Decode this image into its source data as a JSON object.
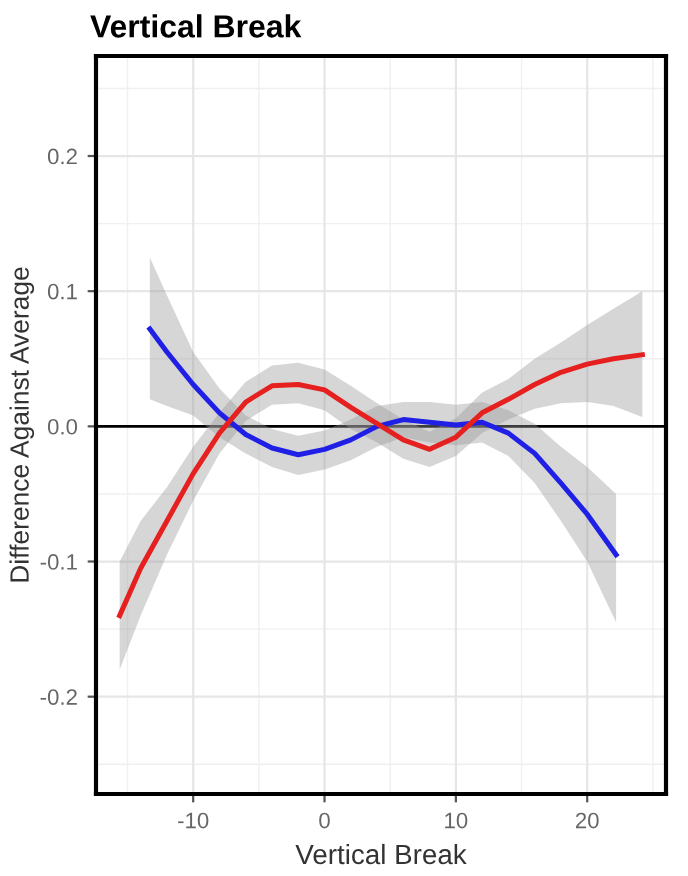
{
  "chart_data": {
    "type": "line",
    "title": "Vertical Break",
    "xlabel": "Vertical Break",
    "ylabel": "Difference Against Average",
    "xlim": [
      -17.4,
      26
    ],
    "xticks": [
      {
        "value": -10,
        "label": "-10"
      },
      0,
      10,
      20
    ],
    "ylim": [
      -0.272,
      0.274
    ],
    "yticks": [
      {
        "value": -0.2,
        "label": "-0.2"
      },
      {
        "value": -0.1,
        "label": "-0.1"
      },
      {
        "value": 0,
        "label": "0.0"
      },
      0.1,
      0.2
    ],
    "grid": true,
    "marker": "none",
    "line_style": "solid",
    "ref_lines": [
      {
        "axis": "y",
        "value": 0,
        "color": "#000000"
      }
    ],
    "series": [
      {
        "color": "#1f1fe6",
        "x": [
          -13.3,
          -12,
          -10,
          -8,
          -6,
          -4,
          -2,
          0,
          2,
          4,
          6,
          8,
          10,
          12,
          14,
          16,
          18,
          20,
          22.2
        ],
        "values": [
          0.072,
          0.055,
          0.031,
          0.01,
          -0.006,
          -0.016,
          -0.021,
          -0.017,
          -0.01,
          0.0,
          0.005,
          0.003,
          0.001,
          0.003,
          -0.005,
          -0.02,
          -0.042,
          -0.065,
          -0.095
        ],
        "lower": [
          0.02,
          0.015,
          0.008,
          -0.008,
          -0.02,
          -0.03,
          -0.036,
          -0.032,
          -0.025,
          -0.015,
          -0.008,
          -0.012,
          -0.014,
          -0.012,
          -0.022,
          -0.042,
          -0.07,
          -0.1,
          -0.145
        ],
        "upper": [
          0.125,
          0.097,
          0.055,
          0.028,
          0.008,
          -0.002,
          -0.007,
          -0.003,
          0.005,
          0.015,
          0.018,
          0.018,
          0.016,
          0.018,
          0.012,
          0.002,
          -0.015,
          -0.03,
          -0.05
        ]
      },
      {
        "color": "#e61f1f",
        "x": [
          -15.6,
          -14,
          -12,
          -10,
          -8,
          -6,
          -4,
          -2,
          0,
          2,
          4,
          6,
          8,
          10,
          12,
          14,
          16,
          18,
          20,
          22,
          24.2
        ],
        "values": [
          -0.14,
          -0.105,
          -0.07,
          -0.035,
          -0.005,
          0.018,
          0.03,
          0.031,
          0.027,
          0.014,
          0.002,
          -0.01,
          -0.017,
          -0.008,
          0.01,
          0.02,
          0.031,
          0.04,
          0.046,
          0.05,
          0.053
        ],
        "lower": [
          -0.18,
          -0.14,
          -0.095,
          -0.055,
          -0.02,
          0.004,
          0.016,
          0.017,
          0.012,
          -0.002,
          -0.012,
          -0.024,
          -0.03,
          -0.022,
          -0.005,
          0.005,
          0.013,
          0.017,
          0.018,
          0.015,
          0.007
        ],
        "upper": [
          -0.1,
          -0.07,
          -0.045,
          -0.015,
          0.01,
          0.033,
          0.045,
          0.047,
          0.042,
          0.03,
          0.017,
          0.005,
          -0.004,
          0.006,
          0.025,
          0.035,
          0.05,
          0.062,
          0.075,
          0.087,
          0.1
        ]
      }
    ]
  }
}
